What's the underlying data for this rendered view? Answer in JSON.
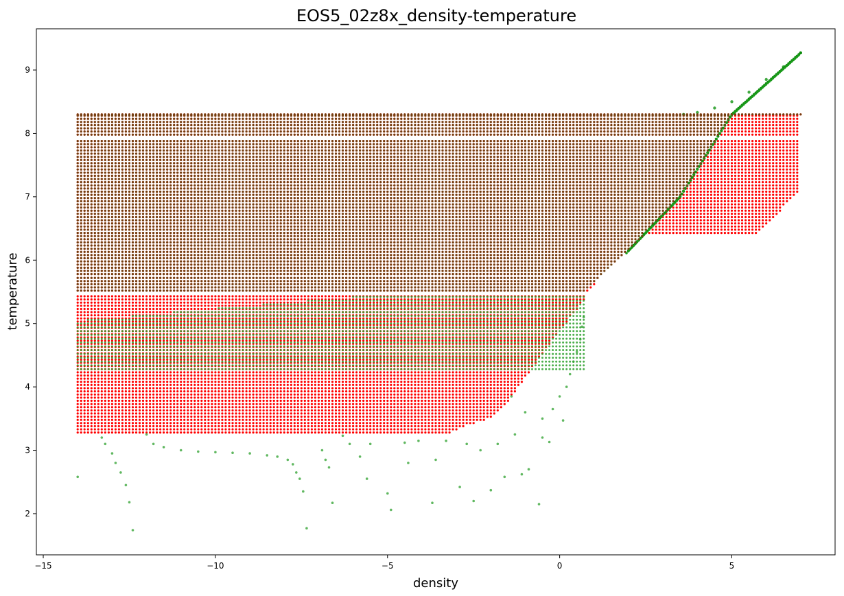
{
  "chart_data": {
    "type": "scatter",
    "title": "EOS5_02z8x_density-temperature",
    "xlabel": "density",
    "ylabel": "temperature",
    "xlim": [
      -15.2,
      8.0
    ],
    "ylim": [
      1.35,
      9.65
    ],
    "xticks": [
      -15,
      -10,
      -5,
      0,
      5
    ],
    "yticks": [
      2,
      3,
      4,
      5,
      6,
      7,
      8,
      9
    ],
    "grid": false,
    "legend": "none",
    "series": [
      {
        "color": "#ff0000",
        "marker_size": 2,
        "grid_region": {
          "x_range": [
            -14.0,
            7.0
          ],
          "x_step": 0.1,
          "t_values": [
            3.28,
            3.33,
            3.38,
            3.43,
            3.48,
            3.53,
            3.58,
            3.63,
            3.68,
            3.73,
            3.78,
            3.83,
            3.88,
            3.93,
            3.98,
            4.03,
            4.08,
            4.13,
            4.18,
            4.23,
            4.28,
            4.33,
            4.38,
            4.43,
            4.48,
            4.53,
            4.58,
            4.63,
            4.68,
            4.73,
            4.78,
            4.83,
            4.88,
            4.93,
            4.98,
            5.03,
            5.08,
            5.13,
            5.18,
            5.23,
            5.28,
            5.33,
            5.38,
            5.43,
            5.52,
            5.57,
            5.62,
            5.67,
            5.72,
            5.78,
            5.83,
            5.88,
            5.93,
            5.98,
            6.03,
            6.08,
            6.13,
            6.18,
            6.23,
            6.28,
            6.33,
            6.38,
            6.43,
            6.48,
            6.53,
            6.58,
            6.63,
            6.68,
            6.73,
            6.78,
            6.83,
            6.88,
            6.93,
            6.98,
            7.03,
            7.08,
            7.13,
            7.18,
            7.23,
            7.28,
            7.33,
            7.38,
            7.43,
            7.48,
            7.53,
            7.58,
            7.63,
            7.68,
            7.73,
            7.78,
            7.83,
            7.88,
            7.98,
            8.03,
            8.08,
            8.13,
            8.18,
            8.23,
            8.28,
            8.3
          ],
          "left_boundary_x": -14.0,
          "upper_right_boundary": [
            [
              -3.2,
              3.28
            ],
            [
              -2.8,
              3.38
            ],
            [
              -2.0,
              3.5
            ],
            [
              -1.6,
              3.7
            ],
            [
              -1.2,
              4.0
            ],
            [
              -0.8,
              4.3
            ],
            [
              -0.4,
              4.6
            ],
            [
              0.0,
              4.9
            ],
            [
              0.7,
              5.35
            ],
            [
              1.2,
              5.8
            ],
            [
              2.0,
              6.15
            ],
            [
              2.3,
              6.4
            ],
            [
              3.0,
              6.4
            ],
            [
              5.7,
              6.4
            ],
            [
              7.0,
              7.1
            ],
            [
              7.0,
              8.3
            ]
          ]
        }
      },
      {
        "color": "#2ca02c",
        "marker_size": 2,
        "grid_region": {
          "x_range": [
            -14.0,
            7.0
          ],
          "x_step": 0.1,
          "t_range": [
            4.25,
            8.3
          ],
          "upper_right_boundary": [
            [
              -14.0,
              4.25
            ],
            [
              0.0,
              4.9
            ],
            [
              2.0,
              6.15
            ],
            [
              3.5,
              7.0
            ],
            [
              5.0,
              8.3
            ],
            [
              7.0,
              9.27
            ]
          ]
        },
        "boundary_curve": [
          [
            3.6,
            8.3
          ],
          [
            4.0,
            8.33
          ],
          [
            4.5,
            8.4
          ],
          [
            5.0,
            8.5
          ],
          [
            5.5,
            8.65
          ],
          [
            6.0,
            8.85
          ],
          [
            6.5,
            9.05
          ],
          [
            7.0,
            9.27
          ]
        ],
        "outliers": [
          [
            -14.0,
            2.58
          ],
          [
            -13.3,
            3.2
          ],
          [
            -13.2,
            3.1
          ],
          [
            -13.0,
            2.95
          ],
          [
            -12.9,
            2.8
          ],
          [
            -12.75,
            2.65
          ],
          [
            -12.6,
            2.45
          ],
          [
            -12.5,
            2.18
          ],
          [
            -12.4,
            1.74
          ],
          [
            -12.0,
            3.25
          ],
          [
            -11.8,
            3.1
          ],
          [
            -11.5,
            3.05
          ],
          [
            -11.0,
            3.0
          ],
          [
            -10.5,
            2.98
          ],
          [
            -10.0,
            2.97
          ],
          [
            -9.5,
            2.96
          ],
          [
            -9.0,
            2.95
          ],
          [
            -8.5,
            2.92
          ],
          [
            -8.2,
            2.9
          ],
          [
            -7.9,
            2.85
          ],
          [
            -7.75,
            2.78
          ],
          [
            -7.65,
            2.65
          ],
          [
            -7.55,
            2.55
          ],
          [
            -7.45,
            2.35
          ],
          [
            -7.35,
            1.77
          ],
          [
            -6.9,
            3.0
          ],
          [
            -6.8,
            2.85
          ],
          [
            -6.7,
            2.73
          ],
          [
            -6.6,
            2.17
          ],
          [
            -6.3,
            3.23
          ],
          [
            -6.1,
            3.1
          ],
          [
            -5.8,
            2.9
          ],
          [
            -5.6,
            2.55
          ],
          [
            -5.5,
            3.1
          ],
          [
            -5.0,
            2.32
          ],
          [
            -4.9,
            2.06
          ],
          [
            -4.5,
            3.12
          ],
          [
            -4.4,
            2.8
          ],
          [
            -4.1,
            3.15
          ],
          [
            -3.7,
            2.17
          ],
          [
            -3.6,
            2.85
          ],
          [
            -3.3,
            3.15
          ],
          [
            -2.9,
            2.42
          ],
          [
            -2.7,
            3.1
          ],
          [
            -2.5,
            2.2
          ],
          [
            -2.3,
            3.0
          ],
          [
            -2.0,
            2.37
          ],
          [
            -1.8,
            3.1
          ],
          [
            -1.6,
            2.58
          ],
          [
            -1.3,
            3.25
          ],
          [
            -1.1,
            2.62
          ],
          [
            -0.9,
            2.7
          ],
          [
            -0.6,
            2.15
          ],
          [
            -0.5,
            3.2
          ],
          [
            -0.3,
            3.13
          ],
          [
            0.1,
            3.47
          ],
          [
            -0.2,
            3.65
          ],
          [
            -0.5,
            3.5
          ],
          [
            -1.0,
            3.6
          ],
          [
            -1.4,
            3.85
          ],
          [
            0.0,
            3.85
          ],
          [
            0.2,
            4.0
          ],
          [
            0.3,
            4.2
          ],
          [
            0.4,
            4.4
          ],
          [
            0.5,
            4.55
          ],
          [
            0.6,
            4.75
          ],
          [
            0.65,
            4.95
          ],
          [
            0.7,
            5.1
          ]
        ]
      },
      {
        "color": "#704010",
        "marker_size": 2,
        "note_band": "overlap",
        "grid_region": {
          "x_range": [
            -14.0,
            7.0
          ],
          "x_step": 0.1,
          "t_range": [
            5.5,
            8.3
          ],
          "upper_right_boundary": [
            [
              -14.0,
              5.5
            ],
            [
              0.7,
              5.5
            ],
            [
              2.0,
              6.15
            ],
            [
              3.5,
              7.0
            ],
            [
              5.0,
              8.3
            ]
          ]
        }
      }
    ]
  }
}
